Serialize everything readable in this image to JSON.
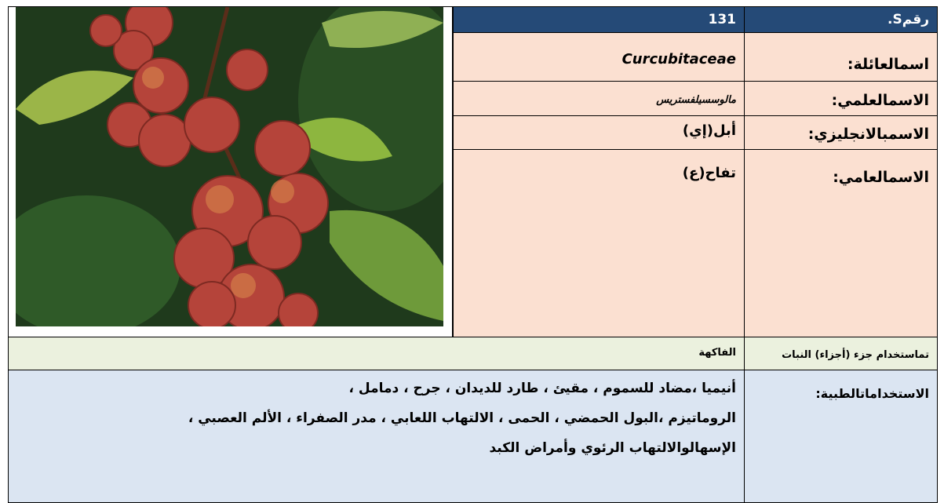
{
  "table": {
    "header": {
      "label": "رقمS.",
      "value": "131"
    },
    "rows": [
      {
        "label": "اسمالعائلة:",
        "value": "Curcubitaceae"
      },
      {
        "label": "الاسمالعلمي:",
        "value": "مالوسسيلفستريس"
      },
      {
        "label": "الاسمبالانجليزي:",
        "value": "أبل(إي)"
      },
      {
        "label": "الاسمالعامي:",
        "value": "تفاح(ع)"
      }
    ],
    "part_used": {
      "label": "تماستخدام جزء (أجزاء) النبات",
      "value": "الفاكهة"
    },
    "medical_uses": {
      "label": "الاستخداماتالطبية:",
      "lines": [
        "أنيميا ،مضاد للسموم ، مقيئ ، طارد للديدان ، جرح ، دمامل ،",
        "الروماتيزم ،البول الحمضي ، الحمى ، الالتهاب اللعابي ، مدر الصفراء ، الألم العصبي ،",
        "الإسهالوالالتهاب الرئوي وأمراض الكبد"
      ]
    }
  }
}
